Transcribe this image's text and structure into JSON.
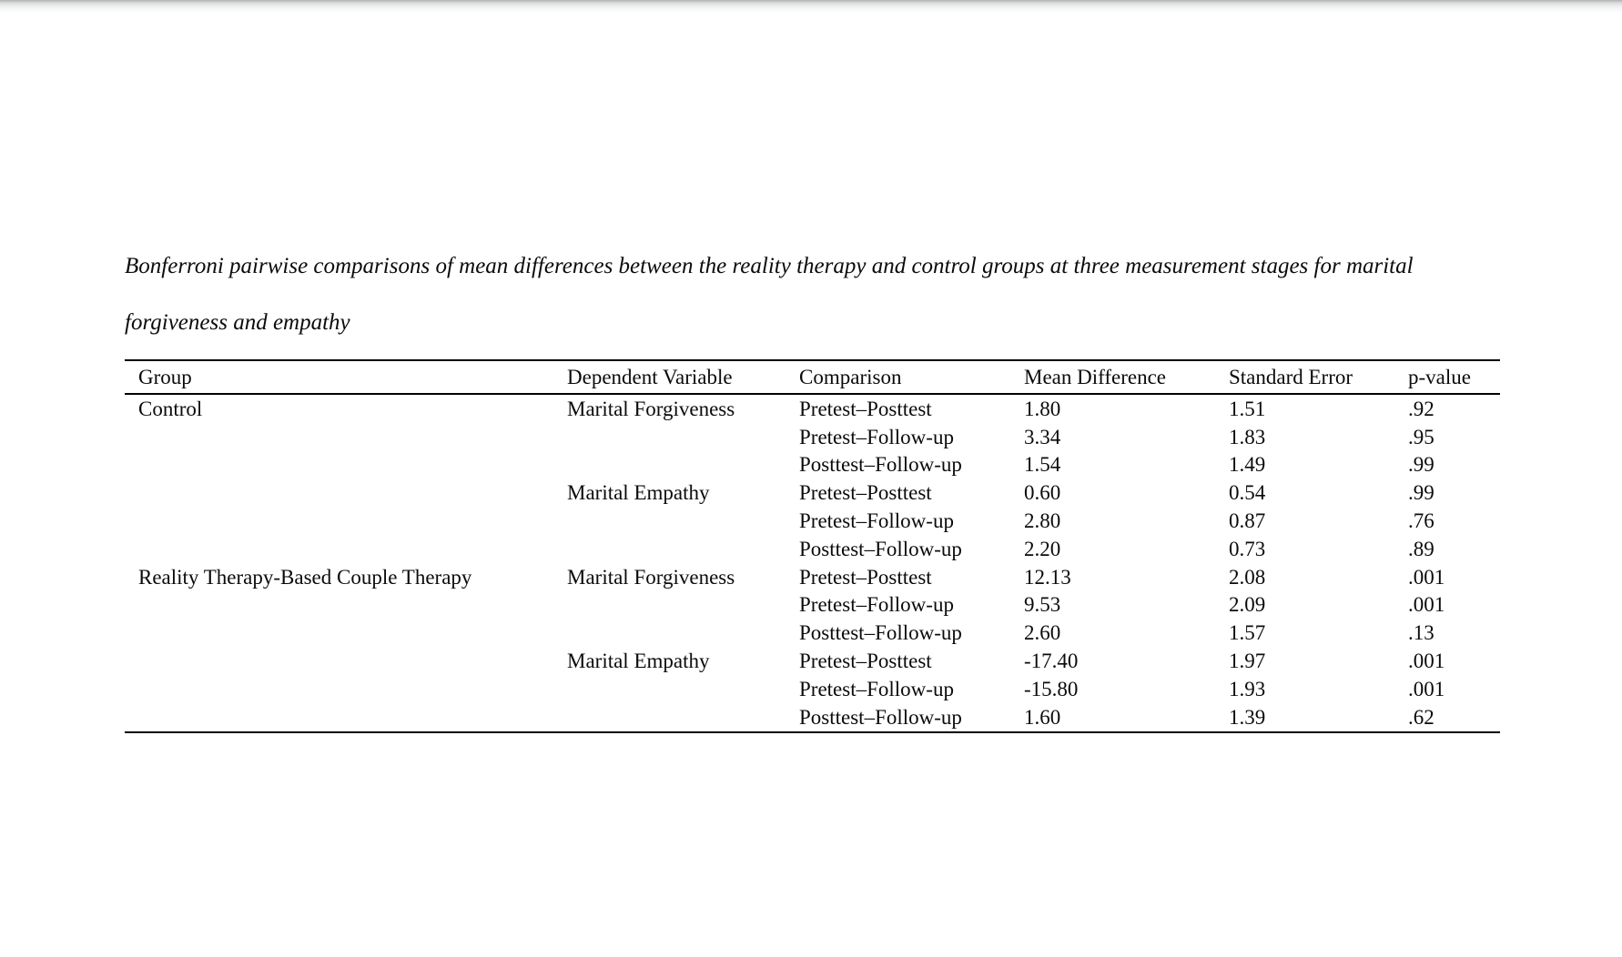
{
  "page": {
    "background": "#ffffff",
    "text_color": "#0b0b0b",
    "rule_color": "#000000"
  },
  "caption": {
    "line1": "Bonferroni pairwise comparisons of mean differences between the reality therapy and control groups at three measurement stages for marital",
    "line2": "forgiveness and empathy"
  },
  "table": {
    "columns": [
      "Group",
      "Dependent Variable",
      "Comparison",
      "Mean Difference",
      "Standard Error",
      "p-value"
    ],
    "rows": [
      {
        "group": "Control",
        "dv": "Marital Forgiveness",
        "comparison": "Pretest–Posttest",
        "mean_difference": "1.80",
        "standard_error": "1.51",
        "p_value": ".92"
      },
      {
        "group": "",
        "dv": "",
        "comparison": "Pretest–Follow-up",
        "mean_difference": "3.34",
        "standard_error": "1.83",
        "p_value": ".95"
      },
      {
        "group": "",
        "dv": "",
        "comparison": "Posttest–Follow-up",
        "mean_difference": "1.54",
        "standard_error": "1.49",
        "p_value": ".99"
      },
      {
        "group": "",
        "dv": "Marital Empathy",
        "comparison": "Pretest–Posttest",
        "mean_difference": "0.60",
        "standard_error": "0.54",
        "p_value": ".99"
      },
      {
        "group": "",
        "dv": "",
        "comparison": "Pretest–Follow-up",
        "mean_difference": "2.80",
        "standard_error": "0.87",
        "p_value": ".76"
      },
      {
        "group": "",
        "dv": "",
        "comparison": "Posttest–Follow-up",
        "mean_difference": "2.20",
        "standard_error": "0.73",
        "p_value": ".89"
      },
      {
        "group": "Reality Therapy-Based Couple Therapy",
        "dv": "Marital Forgiveness",
        "comparison": "Pretest–Posttest",
        "mean_difference": "12.13",
        "standard_error": "2.08",
        "p_value": ".001"
      },
      {
        "group": "",
        "dv": "",
        "comparison": "Pretest–Follow-up",
        "mean_difference": "9.53",
        "standard_error": "2.09",
        "p_value": ".001"
      },
      {
        "group": "",
        "dv": "",
        "comparison": "Posttest–Follow-up",
        "mean_difference": "2.60",
        "standard_error": "1.57",
        "p_value": ".13"
      },
      {
        "group": "",
        "dv": "Marital Empathy",
        "comparison": "Pretest–Posttest",
        "mean_difference": "-17.40",
        "standard_error": "1.97",
        "p_value": ".001"
      },
      {
        "group": "",
        "dv": "",
        "comparison": "Pretest–Follow-up",
        "mean_difference": "-15.80",
        "standard_error": "1.93",
        "p_value": ".001"
      },
      {
        "group": "",
        "dv": "",
        "comparison": "Posttest–Follow-up",
        "mean_difference": "1.60",
        "standard_error": "1.39",
        "p_value": ".62"
      }
    ]
  }
}
